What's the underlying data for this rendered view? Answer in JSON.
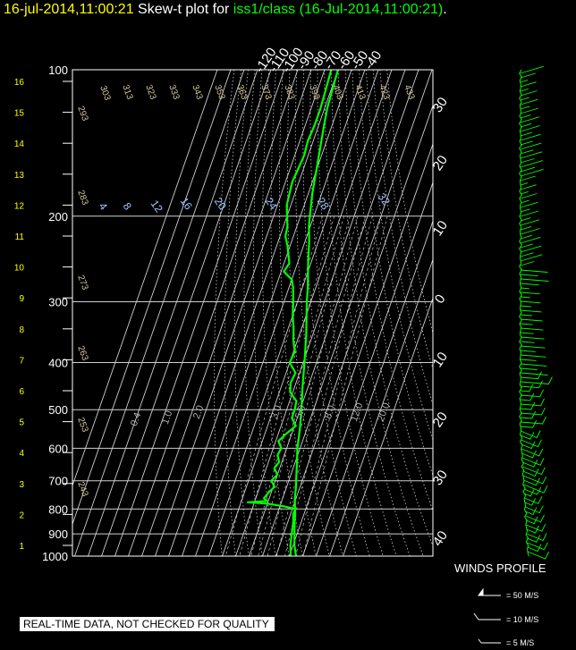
{
  "title": {
    "date": "16-jul-2014,11:00:21",
    "mid": "Skew-t plot for",
    "source": "iss1/class (16-Jul-2014,11:00:21)",
    "end": "."
  },
  "chart_data": {
    "type": "line",
    "pressure_levels": [
      100,
      200,
      300,
      400,
      500,
      600,
      700,
      800,
      900,
      1000
    ],
    "height_ticks_km": [
      1,
      2,
      3,
      4,
      5,
      6,
      7,
      8,
      9,
      10,
      11,
      12,
      13,
      14,
      15,
      16
    ],
    "temperature_ticks_top": [
      -120,
      -110,
      -100,
      -90,
      -80,
      -70,
      -60,
      -50,
      -40
    ],
    "temperature_ticks_right": [
      30,
      20,
      10,
      0,
      10,
      20,
      30,
      40
    ],
    "dry_adiabat_labels": [
      "293",
      "303",
      "313",
      "323",
      "333",
      "343",
      "353",
      "363",
      "373",
      "383",
      "393",
      "403",
      "413",
      "423",
      "433",
      "283",
      "273",
      "263",
      "253",
      "243"
    ],
    "mixing_ratio_labels_upper": [
      "4",
      "8",
      "12",
      "16",
      "20",
      "24",
      "28",
      "32"
    ],
    "mixing_ratio_labels_lower": [
      "0.4",
      "1.0",
      "2.0",
      "3.0",
      "5.0",
      "8.0",
      "12.0",
      "20.0"
    ],
    "series": [
      {
        "color": "#00ff00",
        "points": [
          [
            1000,
            25
          ],
          [
            950,
            21
          ],
          [
            900,
            18
          ],
          [
            850,
            15
          ],
          [
            820,
            13.5
          ],
          [
            800,
            12
          ],
          [
            760,
            9
          ],
          [
            720,
            7
          ],
          [
            700,
            5.5
          ],
          [
            650,
            2
          ],
          [
            600,
            -2
          ],
          [
            550,
            -5
          ],
          [
            500,
            -9
          ],
          [
            450,
            -14
          ],
          [
            400,
            -19
          ],
          [
            350,
            -25
          ],
          [
            300,
            -33
          ],
          [
            280,
            -36
          ],
          [
            250,
            -42
          ],
          [
            225,
            -47
          ],
          [
            210,
            -51
          ],
          [
            200,
            -53
          ],
          [
            180,
            -57
          ],
          [
            150,
            -62
          ],
          [
            130,
            -66
          ],
          [
            120,
            -68
          ],
          [
            110,
            -69
          ],
          [
            100,
            -70
          ]
        ]
      },
      {
        "color": "#00ff00",
        "points": [
          [
            1000,
            21
          ],
          [
            950,
            18
          ],
          [
            900,
            16
          ],
          [
            850,
            14
          ],
          [
            820,
            12
          ],
          [
            800,
            12
          ],
          [
            790,
            3
          ],
          [
            780,
            -10
          ],
          [
            775,
            -25
          ],
          [
            770,
            -11
          ],
          [
            760,
            -14
          ],
          [
            740,
            -12
          ],
          [
            720,
            -9
          ],
          [
            700,
            -13
          ],
          [
            680,
            -10
          ],
          [
            660,
            -14
          ],
          [
            640,
            -12
          ],
          [
            620,
            -15
          ],
          [
            600,
            -14
          ],
          [
            580,
            -18
          ],
          [
            560,
            -14
          ],
          [
            540,
            -9
          ],
          [
            520,
            -14
          ],
          [
            500,
            -14
          ],
          [
            480,
            -15
          ],
          [
            460,
            -22
          ],
          [
            440,
            -24
          ],
          [
            420,
            -23
          ],
          [
            400,
            -30
          ],
          [
            380,
            -29
          ],
          [
            360,
            -33
          ],
          [
            340,
            -36
          ],
          [
            320,
            -40
          ],
          [
            300,
            -43
          ],
          [
            280,
            -47
          ],
          [
            270,
            -50
          ],
          [
            260,
            -58
          ],
          [
            250,
            -56
          ],
          [
            240,
            -59
          ],
          [
            230,
            -62
          ],
          [
            220,
            -66
          ],
          [
            210,
            -67
          ],
          [
            200,
            -70
          ],
          [
            190,
            -73
          ],
          [
            180,
            -74
          ],
          [
            170,
            -75
          ],
          [
            160,
            -74
          ],
          [
            150,
            -73
          ],
          [
            140,
            -74
          ],
          [
            130,
            -73
          ],
          [
            120,
            -73
          ],
          [
            110,
            -74
          ],
          [
            100,
            -75
          ]
        ]
      }
    ],
    "grid": true
  },
  "winds": {
    "label": "WINDS PROFILE",
    "legend": [
      {
        "text": "= 50 M/S"
      },
      {
        "text": "= 10 M/S"
      },
      {
        "text": "= 5 M/S"
      }
    ]
  },
  "notice": "REAL-TIME DATA, NOT CHECKED FOR QUALITY"
}
